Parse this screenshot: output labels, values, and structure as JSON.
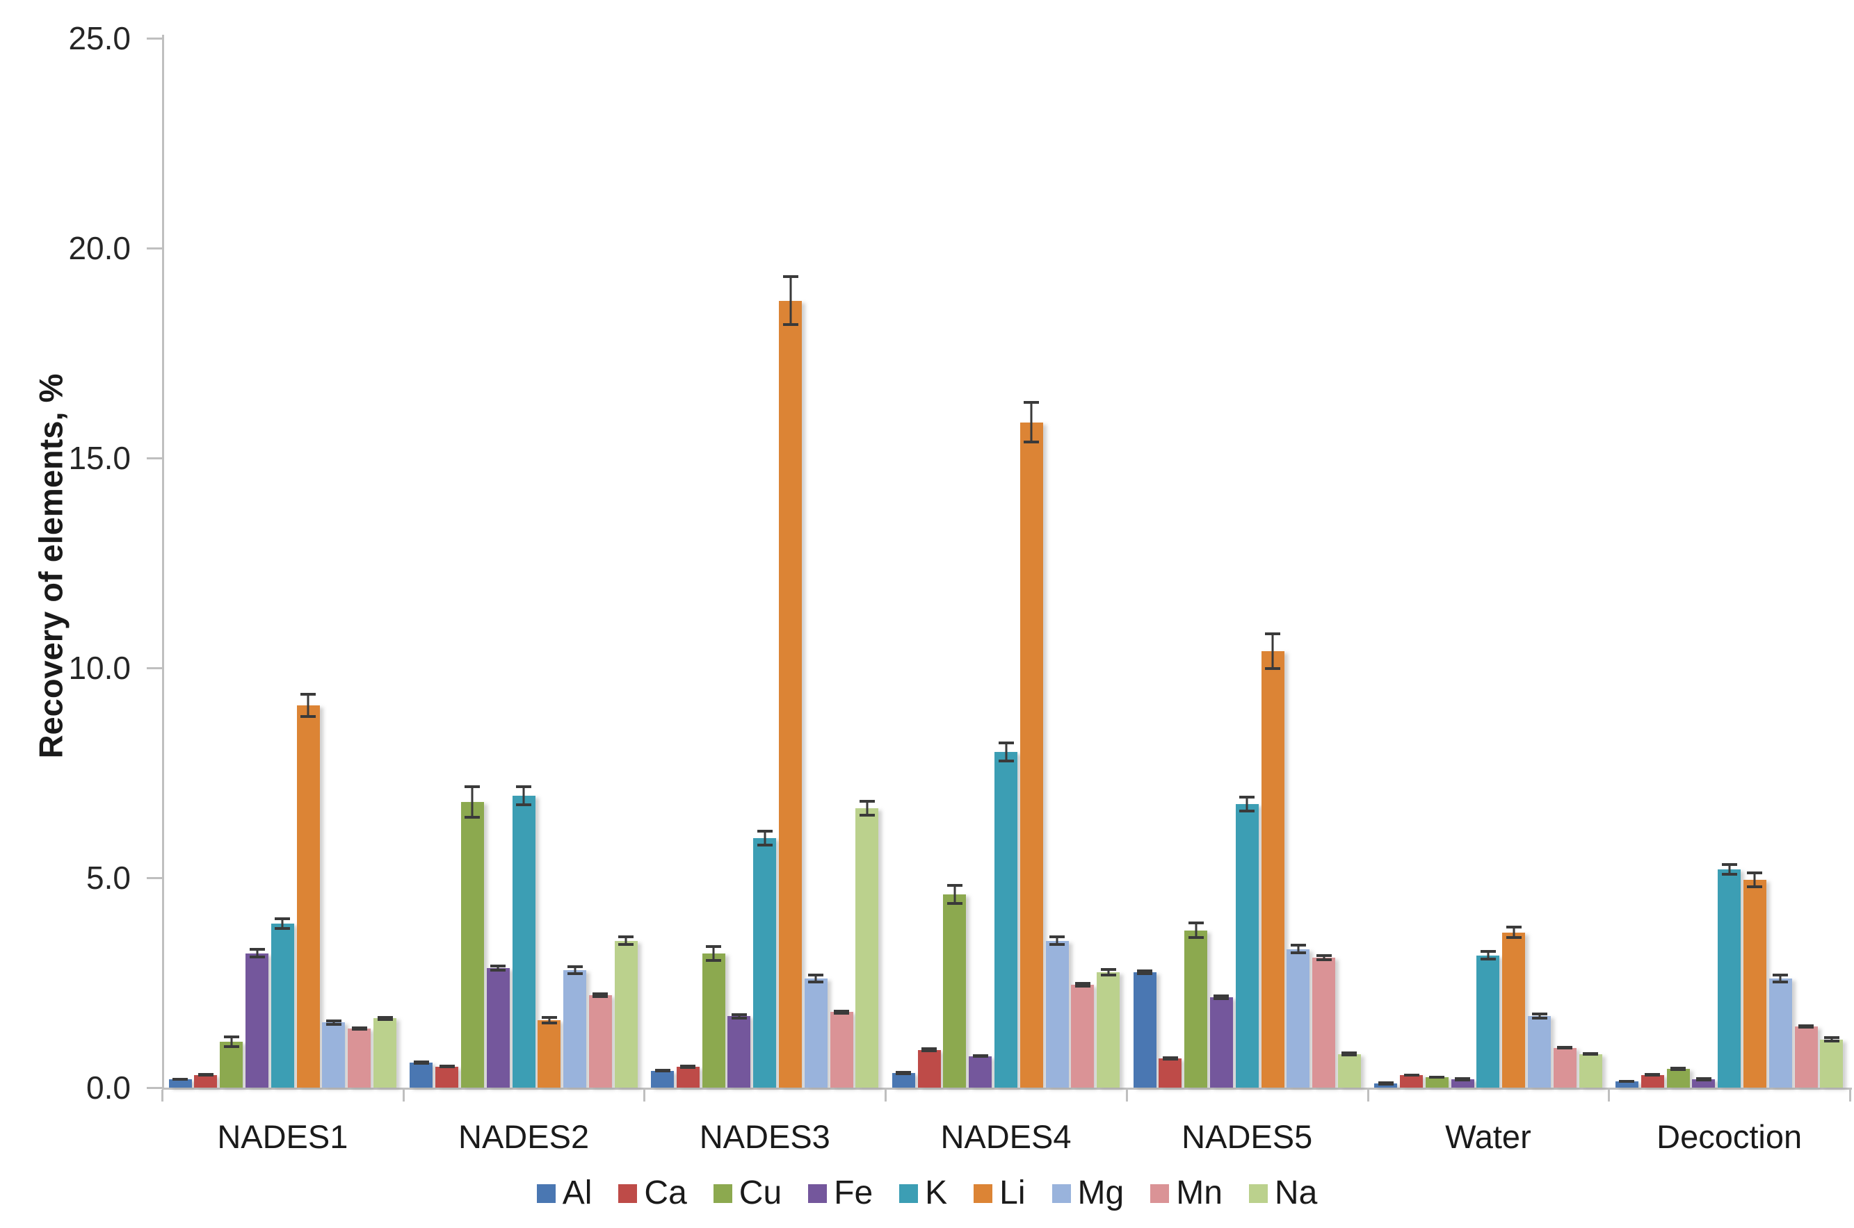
{
  "page": {
    "background": "#FFFFFF"
  },
  "chart_data": {
    "type": "bar",
    "title": "",
    "ylabel": "Recovery of elements, %",
    "xlabel": "",
    "ylim": [
      0,
      25
    ],
    "ytick_step": 5,
    "ytick_labels": [
      "0.0",
      "5.0",
      "10.0",
      "15.0",
      "20.0",
      "25.0"
    ],
    "grid": false,
    "legend_position": "bottom",
    "error_bars": true,
    "axis_color": "#BFBFBF",
    "text_color": "#1A1A1A",
    "categories": [
      "NADES1",
      "NADES2",
      "NADES3",
      "NADES4",
      "NADES5",
      "Water",
      "Decoction"
    ],
    "series": [
      {
        "name": "Al",
        "color": "#4A77B2",
        "values": [
          0.2,
          0.6,
          0.4,
          0.35,
          2.75,
          0.1,
          0.15
        ],
        "errors": [
          0.04,
          0.05,
          0.04,
          0.05,
          0.06,
          0.02,
          0.03
        ]
      },
      {
        "name": "Ca",
        "color": "#BE4B48",
        "values": [
          0.3,
          0.5,
          0.5,
          0.9,
          0.7,
          0.3,
          0.3
        ],
        "errors": [
          0.04,
          0.04,
          0.05,
          0.06,
          0.05,
          0.03,
          0.04
        ]
      },
      {
        "name": "Cu",
        "color": "#8CA94F",
        "values": [
          1.1,
          6.8,
          3.2,
          4.6,
          3.75,
          0.25,
          0.45
        ],
        "errors": [
          0.15,
          0.4,
          0.2,
          0.25,
          0.2,
          0.03,
          0.05
        ]
      },
      {
        "name": "Fe",
        "color": "#74579C",
        "values": [
          3.2,
          2.85,
          1.7,
          0.75,
          2.15,
          0.2,
          0.2
        ],
        "errors": [
          0.12,
          0.08,
          0.07,
          0.04,
          0.07,
          0.02,
          0.02
        ]
      },
      {
        "name": "K",
        "color": "#3C9EB4",
        "values": [
          3.9,
          6.95,
          5.95,
          8.0,
          6.75,
          3.15,
          5.2
        ],
        "errors": [
          0.15,
          0.25,
          0.2,
          0.25,
          0.2,
          0.12,
          0.15
        ]
      },
      {
        "name": "Li",
        "color": "#DC8435",
        "values": [
          9.1,
          1.6,
          18.75,
          15.85,
          10.4,
          3.7,
          4.95
        ],
        "errors": [
          0.3,
          0.1,
          0.6,
          0.5,
          0.45,
          0.15,
          0.2
        ]
      },
      {
        "name": "Mg",
        "color": "#99B3DC",
        "values": [
          1.55,
          2.8,
          2.6,
          3.5,
          3.3,
          1.7,
          2.6
        ],
        "errors": [
          0.08,
          0.12,
          0.12,
          0.12,
          0.12,
          0.08,
          0.12
        ]
      },
      {
        "name": "Mn",
        "color": "#DA9396",
        "values": [
          1.4,
          2.2,
          1.8,
          2.45,
          3.1,
          0.95,
          1.45
        ],
        "errors": [
          0.05,
          0.06,
          0.06,
          0.06,
          0.08,
          0.04,
          0.05
        ]
      },
      {
        "name": "Na",
        "color": "#BBD18D",
        "values": [
          1.65,
          3.5,
          6.65,
          2.75,
          0.8,
          0.8,
          1.15
        ],
        "errors": [
          0.06,
          0.12,
          0.2,
          0.1,
          0.06,
          0.04,
          0.08
        ]
      }
    ]
  }
}
